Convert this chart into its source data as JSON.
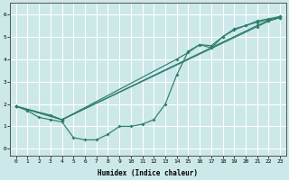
{
  "xlabel": "Humidex (Indice chaleur)",
  "bg_color": "#cce8e8",
  "grid_color": "#ffffff",
  "line_color": "#2e7d6e",
  "xlim": [
    -0.5,
    23.5
  ],
  "ylim": [
    -0.3,
    6.5
  ],
  "xticks": [
    0,
    1,
    2,
    3,
    4,
    5,
    6,
    7,
    8,
    9,
    10,
    11,
    12,
    13,
    14,
    15,
    16,
    17,
    18,
    19,
    20,
    21,
    22,
    23
  ],
  "yticks": [
    0,
    1,
    2,
    3,
    4,
    5,
    6
  ],
  "line1_x": [
    0,
    1,
    2,
    3,
    4,
    5,
    6,
    7,
    8,
    9,
    10,
    11,
    12,
    13,
    14,
    15,
    16,
    17,
    18,
    19,
    20,
    21,
    22,
    23
  ],
  "line1_y": [
    1.9,
    1.7,
    1.4,
    1.3,
    1.2,
    0.5,
    0.4,
    0.4,
    0.65,
    1.0,
    1.0,
    1.1,
    1.3,
    2.0,
    3.3,
    4.35,
    4.65,
    4.5,
    5.0,
    5.3,
    5.5,
    5.65,
    5.75,
    5.85
  ],
  "line2_x": [
    0,
    3,
    4,
    14,
    15,
    16,
    17,
    18,
    19,
    20,
    21,
    22,
    23
  ],
  "line2_y": [
    1.9,
    1.5,
    1.3,
    4.0,
    4.3,
    4.65,
    4.6,
    5.0,
    5.35,
    5.5,
    5.7,
    5.8,
    5.9
  ],
  "line3_x": [
    0,
    4,
    21,
    22,
    23
  ],
  "line3_y": [
    1.9,
    1.3,
    5.45,
    5.7,
    5.85
  ],
  "line4_x": [
    0,
    4,
    21,
    22,
    23
  ],
  "line4_y": [
    1.9,
    1.3,
    5.5,
    5.72,
    5.9
  ]
}
